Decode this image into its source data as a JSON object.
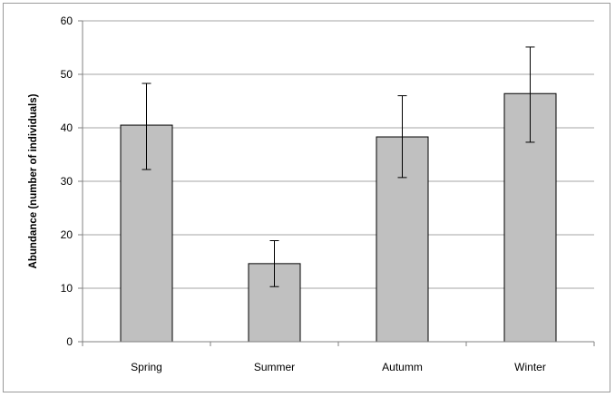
{
  "chart_data": {
    "type": "bar",
    "title": "",
    "xlabel": "",
    "ylabel": "Abundance  (number of individuals)",
    "categories": [
      "Spring",
      "Summer",
      "Autumm",
      "Winter"
    ],
    "values": [
      40.5,
      14.6,
      38.3,
      46.4
    ],
    "error_low": [
      32.2,
      10.3,
      30.7,
      37.3
    ],
    "error_high": [
      48.3,
      18.9,
      46.0,
      55.1
    ],
    "ylim": [
      0,
      60
    ],
    "yticks": [
      0,
      10,
      20,
      30,
      40,
      50,
      60
    ],
    "grid": true,
    "legend": "none",
    "colors": {
      "bar_fill": "#c0c0c0",
      "bar_stroke": "#000000",
      "grid": "#a6a6a6",
      "error_bar": "#000000"
    }
  }
}
